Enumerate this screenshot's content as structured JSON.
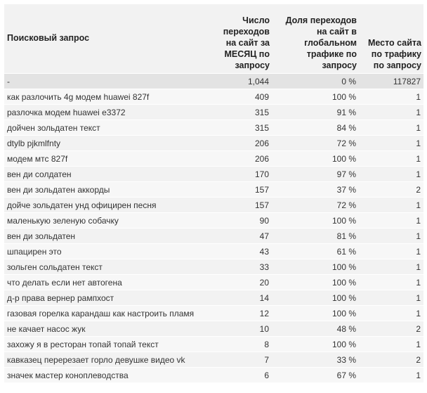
{
  "headers": {
    "query": "Поисковый запрос",
    "visits": "Число переходов на сайт за МЕСЯЦ по запросу",
    "share": "Доля переходов на сайт в глобальном трафике по запросу",
    "place": "Место сайта по трафику по запросу"
  },
  "rows": [
    {
      "query": "-",
      "visits": "1,044",
      "share": "0 %",
      "place": "117827"
    },
    {
      "query": "как разлочить 4g модем huawei 827f",
      "visits": "409",
      "share": "100 %",
      "place": "1"
    },
    {
      "query": "разлочка модем huawei e3372",
      "visits": "315",
      "share": "91 %",
      "place": "1"
    },
    {
      "query": "дойчен зольдатен текст",
      "visits": "315",
      "share": "84 %",
      "place": "1"
    },
    {
      "query": "dtylb pjkmlfnty",
      "visits": "206",
      "share": "72 %",
      "place": "1"
    },
    {
      "query": "модем мтс 827f",
      "visits": "206",
      "share": "100 %",
      "place": "1"
    },
    {
      "query": "вен ди солдатен",
      "visits": "170",
      "share": "97 %",
      "place": "1"
    },
    {
      "query": "вен ди зольдатен аккорды",
      "visits": "157",
      "share": "37 %",
      "place": "2"
    },
    {
      "query": "дойче зольдатен унд официрен песня",
      "visits": "157",
      "share": "72 %",
      "place": "1"
    },
    {
      "query": "маленькую зеленую собачку",
      "visits": "90",
      "share": "100 %",
      "place": "1"
    },
    {
      "query": "вен ди зольдатен",
      "visits": "47",
      "share": "81 %",
      "place": "1"
    },
    {
      "query": "шпацирен это",
      "visits": "43",
      "share": "61 %",
      "place": "1"
    },
    {
      "query": "зольген сольдатен текст",
      "visits": "33",
      "share": "100 %",
      "place": "1"
    },
    {
      "query": "что делать если нет автогена",
      "visits": "20",
      "share": "100 %",
      "place": "1"
    },
    {
      "query": "д-р права вернер рампхост",
      "visits": "14",
      "share": "100 %",
      "place": "1"
    },
    {
      "query": "газовая горелка карандаш как настроить пламя",
      "visits": "12",
      "share": "100 %",
      "place": "1"
    },
    {
      "query": "не качает насос жук",
      "visits": "10",
      "share": "48 %",
      "place": "2"
    },
    {
      "query": "захожу я в ресторан топай топай текст",
      "visits": "8",
      "share": "100 %",
      "place": "1"
    },
    {
      "query": "кавказец перерезает горло девушке видео vk",
      "visits": "7",
      "share": "33 %",
      "place": "2"
    },
    {
      "query": "значек мастер коноплеводства",
      "visits": "6",
      "share": "67 %",
      "place": "1"
    }
  ]
}
